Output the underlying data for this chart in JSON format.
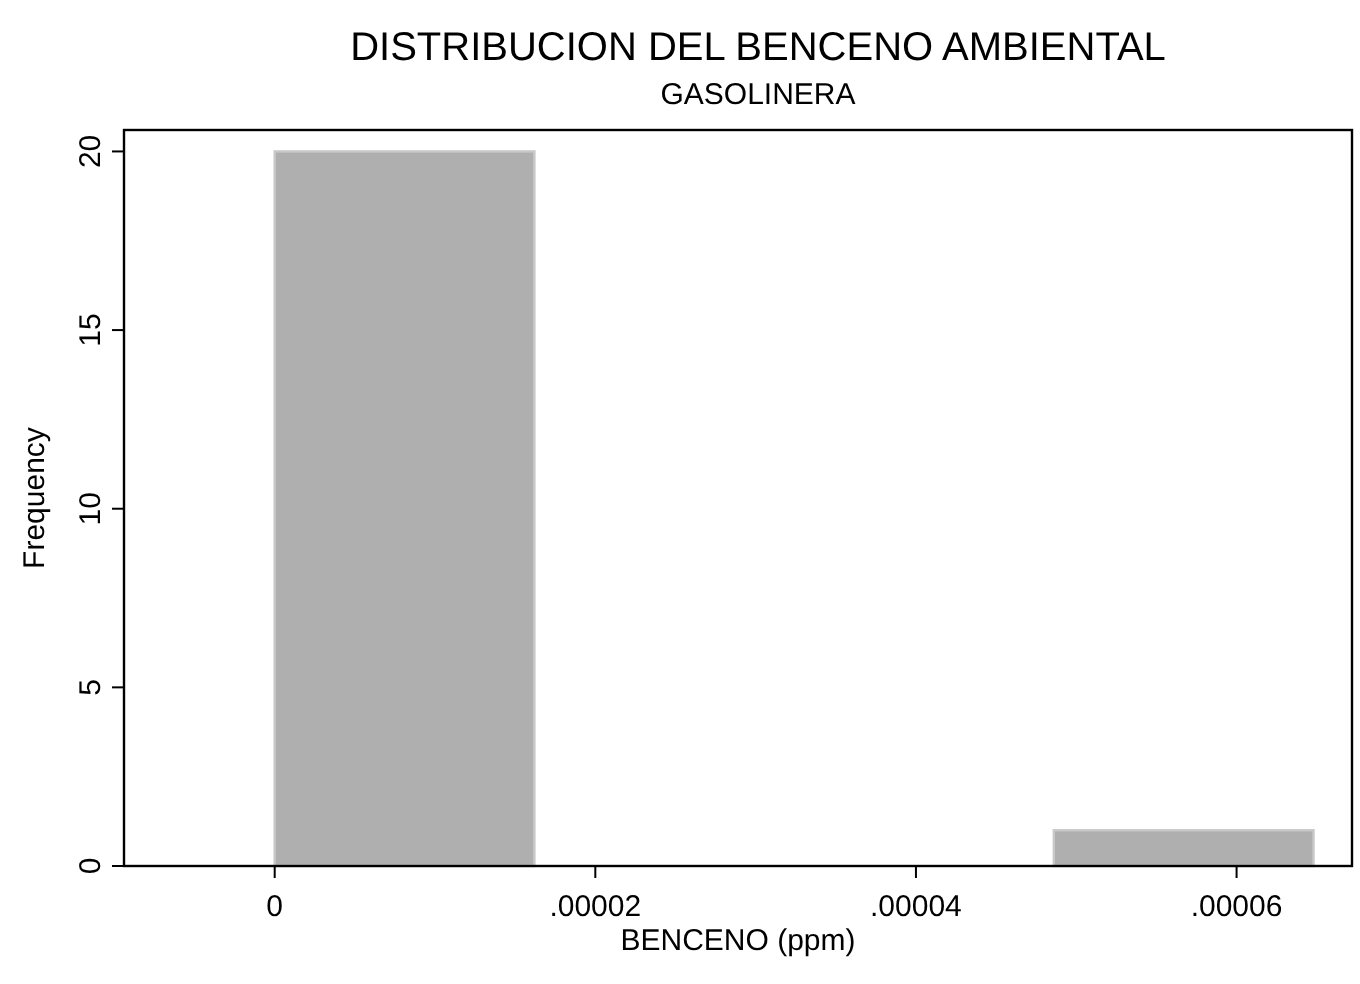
{
  "chart_data": {
    "type": "histogram",
    "title": "DISTRIBUCION DEL BENCENO AMBIENTAL",
    "subtitle": "GASOLINERA",
    "xlabel": "BENCENO (ppm)",
    "ylabel": "Frequency",
    "bins": [
      0,
      1.62e-05,
      3.24e-05,
      4.86e-05,
      6.48e-05
    ],
    "values": [
      20,
      0,
      0,
      1
    ],
    "color": "#afafaf",
    "xlim": [
      -9.4e-06,
      6.72e-05
    ],
    "ylim": [
      0,
      20.6
    ],
    "xticks": [
      0,
      {
        "value": 2e-05,
        "label": ".00002"
      },
      {
        "value": 4e-05,
        "label": ".00004"
      },
      {
        "value": 6e-05,
        "label": ".00006"
      }
    ],
    "yticks": [
      0,
      5,
      10,
      15,
      20
    ],
    "grid": false
  }
}
